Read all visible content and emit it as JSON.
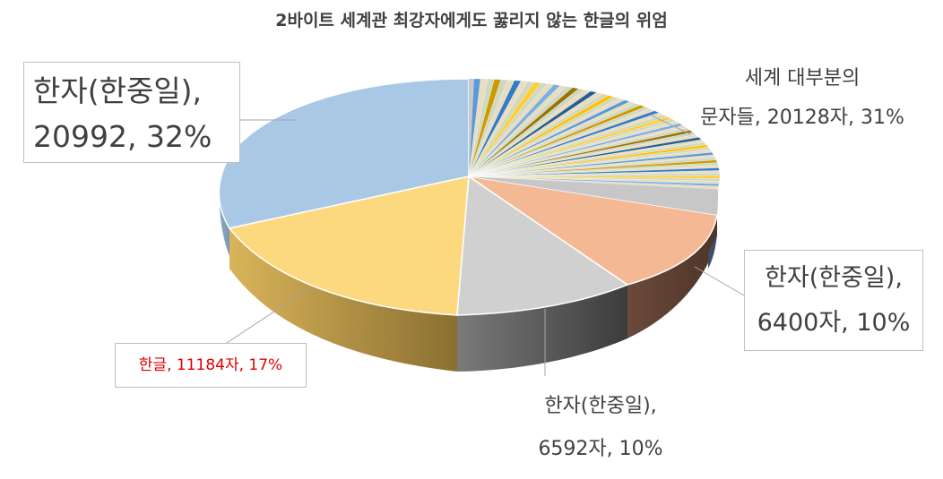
{
  "chart_data": {
    "type": "pie",
    "title": "2바이트 세계관 최강자에게도 꿇리지 않는 한글의 위엄",
    "slices": [
      {
        "category": "한자(한중일)",
        "value": 20992,
        "percent": 32,
        "label_line1": "한자(한중일),",
        "label_line2": "20992, 32%",
        "color": "#a9c8e6"
      },
      {
        "category": "한글",
        "value": 11184,
        "percent": 17,
        "label_line1": "한글",
        "label_line2": ", 11184자, 17%",
        "color": "#fcd97f"
      },
      {
        "category": "한자(한중일)",
        "value": 6592,
        "percent": 10,
        "label_line1": "한자(한중일),",
        "label_line2": "6592자, 10%",
        "color": "#d0d0d0"
      },
      {
        "category": "한자(한중일)",
        "value": 6400,
        "percent": 10,
        "label_line1": "한자(한중일),",
        "label_line2": "6400자, 10%",
        "color": "#f4b994"
      },
      {
        "category": "세계 대부분의 문자들",
        "value": 20128,
        "percent": 31,
        "label_line1": "세계 대부분의",
        "label_line2": "문자들, 20128자, 31%",
        "color": "#7f7f7f"
      }
    ],
    "legend": "none"
  }
}
